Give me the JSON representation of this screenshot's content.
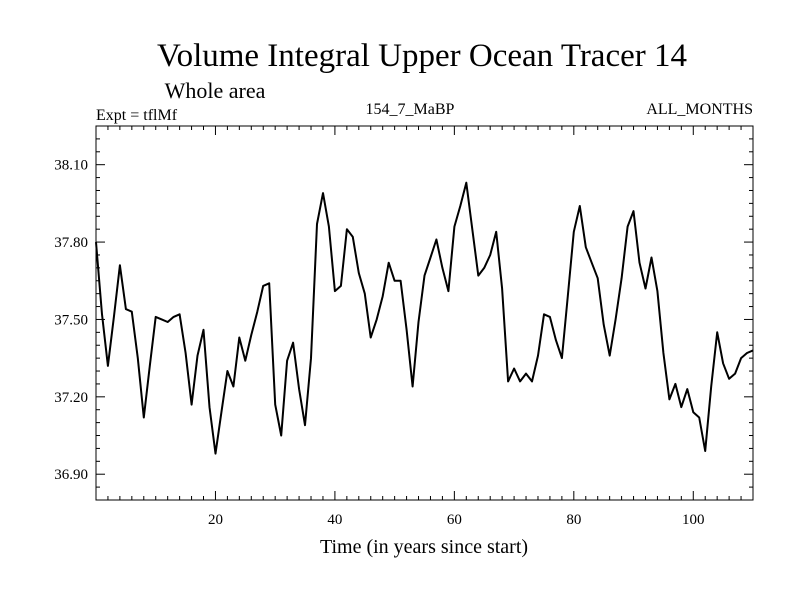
{
  "chart_data": {
    "type": "line",
    "title": "Volume Integral Upper Ocean Tracer 14",
    "subtitle": "Whole area",
    "expt_label": "Expt = tflMf",
    "run_label": "154_7_MaBP",
    "period_label": "ALL_MONTHS",
    "xlabel": "Time (in years since start)",
    "ylabel": "",
    "xlim": [
      0,
      110
    ],
    "ylim": [
      36.8,
      38.25
    ],
    "xticks": [
      20,
      40,
      60,
      80,
      100
    ],
    "yticks": [
      36.9,
      37.2,
      37.5,
      37.8,
      38.1
    ],
    "ytick_labels": [
      "36.90",
      "37.20",
      "37.50",
      "37.80",
      "38.10"
    ],
    "x": [
      0,
      1,
      2,
      3,
      4,
      5,
      6,
      7,
      8,
      9,
      10,
      11,
      12,
      13,
      14,
      15,
      16,
      17,
      18,
      19,
      20,
      21,
      22,
      23,
      24,
      25,
      26,
      27,
      28,
      29,
      30,
      31,
      32,
      33,
      34,
      35,
      36,
      37,
      38,
      39,
      40,
      41,
      42,
      43,
      44,
      45,
      46,
      47,
      48,
      49,
      50,
      51,
      52,
      53,
      54,
      55,
      56,
      57,
      58,
      59,
      60,
      61,
      62,
      63,
      64,
      65,
      66,
      67,
      68,
      69,
      70,
      71,
      72,
      73,
      74,
      75,
      76,
      77,
      78,
      79,
      80,
      81,
      82,
      83,
      84,
      85,
      86,
      87,
      88,
      89,
      90,
      91,
      92,
      93,
      94,
      95,
      96,
      97,
      98,
      99,
      100,
      101,
      102,
      103,
      104,
      105,
      106,
      107,
      108,
      109,
      110
    ],
    "values": [
      37.8,
      37.52,
      37.32,
      37.51,
      37.71,
      37.54,
      37.53,
      37.35,
      37.12,
      37.32,
      37.51,
      37.5,
      37.49,
      37.51,
      37.52,
      37.37,
      37.17,
      37.36,
      37.46,
      37.16,
      36.98,
      37.14,
      37.3,
      37.24,
      37.43,
      37.34,
      37.44,
      37.53,
      37.63,
      37.64,
      37.17,
      37.05,
      37.34,
      37.41,
      37.23,
      37.09,
      37.35,
      37.87,
      37.99,
      37.86,
      37.61,
      37.63,
      37.85,
      37.82,
      37.68,
      37.6,
      37.43,
      37.5,
      37.59,
      37.72,
      37.65,
      37.65,
      37.46,
      37.24,
      37.49,
      37.67,
      37.74,
      37.81,
      37.7,
      37.61,
      37.86,
      37.94,
      38.03,
      37.85,
      37.67,
      37.7,
      37.75,
      37.84,
      37.62,
      37.26,
      37.31,
      37.26,
      37.29,
      37.26,
      37.36,
      37.52,
      37.51,
      37.42,
      37.35,
      37.59,
      37.84,
      37.94,
      37.78,
      37.72,
      37.66,
      37.48,
      37.36,
      37.5,
      37.66,
      37.86,
      37.92,
      37.72,
      37.62,
      37.74,
      37.61,
      37.37,
      37.19,
      37.25,
      37.16,
      37.23,
      37.14,
      37.12,
      36.99,
      37.24,
      37.45,
      37.33,
      37.27,
      37.29,
      37.35,
      37.37,
      37.38
    ]
  }
}
